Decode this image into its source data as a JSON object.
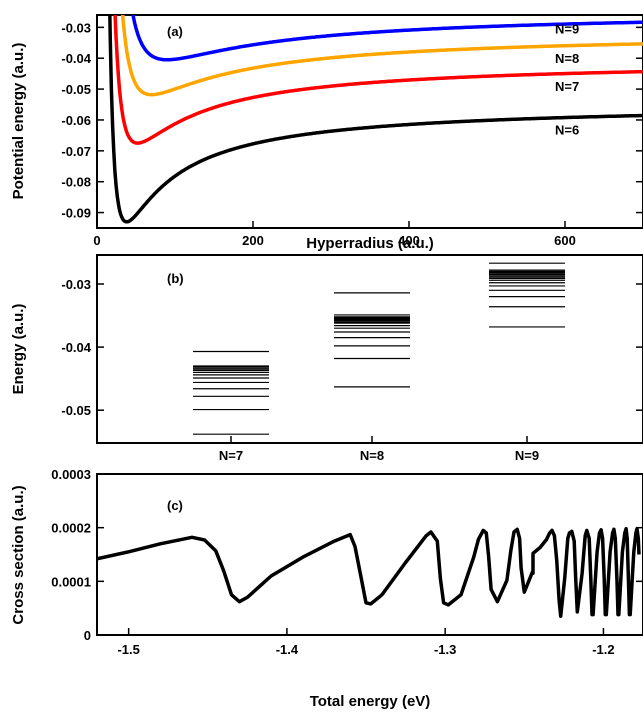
{
  "chart_data": [
    {
      "type": "line",
      "panel_label": "(a)",
      "xlabel": "Hyperradius (a.u.)",
      "ylabel": "Potential energy (a.u.)",
      "xlim": [
        0,
        700
      ],
      "ylim": [
        -0.095,
        -0.026
      ],
      "xticks": [
        0,
        200,
        400,
        600
      ],
      "yticks": [
        -0.09,
        -0.08,
        -0.07,
        -0.06,
        -0.05,
        -0.04,
        -0.03
      ],
      "ytick_labels": [
        "-0.09",
        "-0.08",
        "-0.07",
        "-0.06",
        "-0.05",
        "-0.04",
        "-0.03"
      ],
      "series": [
        {
          "name": "N=6",
          "color": "#000000",
          "r_min": 38,
          "e_min": -0.093,
          "e_inf": -0.0545
        },
        {
          "name": "N=7",
          "color": "#ff0000",
          "r_min": 52,
          "e_min": -0.0675,
          "e_inf": -0.0405
        },
        {
          "name": "N=8",
          "color": "#ffa500",
          "r_min": 70,
          "e_min": -0.0518,
          "e_inf": -0.0315
        },
        {
          "name": "N=9",
          "color": "#0000ff",
          "r_min": 90,
          "e_min": -0.0405,
          "e_inf": -0.0245
        }
      ]
    },
    {
      "type": "levels",
      "panel_label": "(b)",
      "ylabel": "Energy (a.u.)",
      "ylim": [
        -0.0552,
        -0.0254
      ],
      "yticks": [
        -0.05,
        -0.04,
        -0.03
      ],
      "ytick_labels": [
        "-0.05",
        "-0.04",
        "-0.03"
      ],
      "categories": [
        "N=7",
        "N=8",
        "N=9"
      ],
      "levels": [
        [
          -0.0538,
          -0.0499,
          -0.0478,
          -0.0466,
          -0.0456,
          -0.0449,
          -0.0444,
          -0.044,
          -0.0437,
          -0.0435,
          -0.0433,
          -0.0431,
          -0.043,
          -0.0407
        ],
        [
          -0.0463,
          -0.0418,
          -0.0398,
          -0.0385,
          -0.0376,
          -0.037,
          -0.0366,
          -0.0362,
          -0.036,
          -0.0358,
          -0.0356,
          -0.0355,
          -0.0354,
          -0.0353,
          -0.0352,
          -0.0349,
          -0.0314
        ],
        [
          -0.0368,
          -0.0336,
          -0.032,
          -0.031,
          -0.0303,
          -0.0298,
          -0.0294,
          -0.0291,
          -0.0289,
          -0.0287,
          -0.0285,
          -0.0283,
          -0.0282,
          -0.0281,
          -0.028,
          -0.0278,
          -0.0267
        ]
      ]
    },
    {
      "type": "line",
      "panel_label": "(c)",
      "xlabel": "Total energy (eV)",
      "ylabel": "Cross section (a.u.)",
      "xlim": [
        -1.52,
        -1.175
      ],
      "ylim": [
        0,
        0.0003
      ],
      "xticks": [
        -1.5,
        -1.4,
        -1.3,
        -1.2
      ],
      "xtick_labels": [
        "-1.5",
        "-1.4",
        "-1.3",
        "-1.2"
      ],
      "yticks": [
        0,
        0.0001,
        0.0002,
        0.0003
      ],
      "ytick_labels": [
        "0",
        "0.0001",
        "0.0002",
        "0.0003"
      ],
      "series": [
        {
          "color": "#000000",
          "x": [
            -1.52,
            -1.5,
            -1.48,
            -1.46,
            -1.452,
            -1.445,
            -1.44,
            -1.435,
            -1.43,
            -1.425,
            -1.41,
            -1.39,
            -1.37,
            -1.36,
            -1.357,
            -1.353,
            -1.35,
            -1.347,
            -1.34,
            -1.325,
            -1.312,
            -1.309,
            -1.305,
            -1.303,
            -1.301,
            -1.298,
            -1.29,
            -1.282,
            -1.279,
            -1.276,
            -1.274,
            -1.2725,
            -1.271,
            -1.267,
            -1.261,
            -1.2585,
            -1.2565,
            -1.2545,
            -1.253,
            -1.252,
            -1.25,
            -1.2445,
            -1.2445,
            -1.2445,
            -1.2445,
            -1.24,
            -1.236,
            -1.234,
            -1.2325,
            -1.231,
            -1.2295,
            -1.228,
            -1.227,
            -1.2245,
            -1.2225,
            -1.2215,
            -1.22,
            -1.2185,
            -1.2175,
            -1.2165,
            -1.2135,
            -1.2115,
            -1.2105,
            -1.209,
            -1.208,
            -1.2072,
            -1.2065,
            -1.204,
            -1.2025,
            -1.2015,
            -1.2005,
            -1.1995,
            -1.1988,
            -1.1982,
            -1.1958,
            -1.1942,
            -1.1934,
            -1.1925,
            -1.1915,
            -1.1908,
            -1.1903,
            -1.188,
            -1.1865,
            -1.1857,
            -1.185,
            -1.1842,
            -1.1836,
            -1.1831,
            -1.1808,
            -1.1795,
            -1.1788,
            -1.178,
            -1.1775
          ],
          "y": [
            0.000142,
            0.000155,
            0.00017,
            0.000182,
            0.000177,
            0.000157,
            0.00012,
            7.5e-05,
            6.2e-05,
            7e-05,
            0.00011,
            0.000145,
            0.000175,
            0.000187,
            0.000165,
            0.000105,
            6e-05,
            5.8e-05,
            7.5e-05,
            0.000135,
            0.000185,
            0.000192,
            0.000175,
            0.000105,
            6e-05,
            5.6e-05,
            7.5e-05,
            0.000145,
            0.000178,
            0.000195,
            0.00019,
            0.000145,
            8.5e-05,
            6.2e-05,
            0.000102,
            0.000158,
            0.000192,
            0.000197,
            0.00018,
            0.000125,
            8e-05,
            0.00012,
            0.000152,
            0.000115,
            0.000152,
            0.000163,
            0.000178,
            0.00019,
            0.000195,
            0.000185,
            0.00014,
            6.5e-05,
            3.5e-05,
            0.000105,
            0.00018,
            0.00019,
            0.000193,
            0.000175,
            0.000105,
            4.3e-05,
            0.000115,
            0.000185,
            0.000195,
            0.00018,
            0.000105,
            3.8e-05,
            3.8e-05,
            0.000155,
            0.00019,
            0.000196,
            0.00018,
            0.000105,
            3.8e-05,
            3.8e-05,
            0.000155,
            0.00019,
            0.000197,
            0.00018,
            0.000105,
            3.8e-05,
            3.8e-05,
            0.000155,
            0.00019,
            0.000198,
            0.00018,
            0.000105,
            3.8e-05,
            3.8e-05,
            0.000155,
            0.00019,
            0.000198,
            0.00018,
            0.00015
          ]
        }
      ]
    }
  ]
}
